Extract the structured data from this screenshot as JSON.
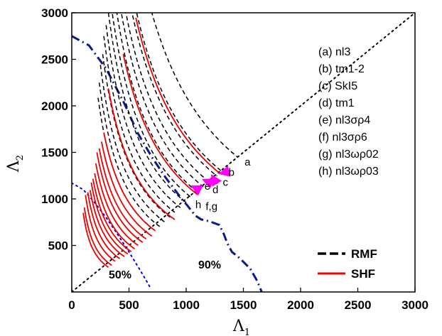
{
  "chart_data": {
    "type": "line",
    "xlabel": "Λ",
    "xlabel_sub": "1",
    "ylabel": "Λ",
    "ylabel_sub": "2",
    "xlim": [
      0,
      3000
    ],
    "ylim": [
      0,
      3000
    ],
    "x_ticks": [
      0,
      500,
      1000,
      1500,
      2000,
      2500,
      3000
    ],
    "y_ticks": [
      500,
      1000,
      1500,
      2000,
      2500,
      3000
    ],
    "grid": false,
    "legend_position": "bottom-right",
    "legend": [
      {
        "label": "RMF",
        "style": "dash",
        "color": "#000000"
      },
      {
        "label": "SHF",
        "style": "solid",
        "color": "#ee0000"
      }
    ],
    "model_list": [
      "(a) nl3",
      "(b) tm1-2",
      "(c) SkI5",
      "(d) tm1",
      "(e) nl3σρ4",
      "(f) nl3σρ6",
      "(g) nl3ωρ02",
      "(h) nl3ωρ03"
    ],
    "annotations": [
      "50%",
      "90%"
    ],
    "point_labels": [
      {
        "text": "a",
        "x": 1510,
        "y": 1360
      },
      {
        "text": "b",
        "x": 1370,
        "y": 1250
      },
      {
        "text": "c",
        "x": 1320,
        "y": 1140
      },
      {
        "text": "d",
        "x": 1230,
        "y": 1060
      },
      {
        "text": "e",
        "x": 1160,
        "y": 1100
      },
      {
        "text": "f,g",
        "x": 1170,
        "y": 880
      },
      {
        "text": "h",
        "x": 1080,
        "y": 900
      }
    ],
    "arrows": [
      {
        "from": [
          1390,
          1300
        ],
        "to": [
          1305,
          1275
        ]
      },
      {
        "from": [
          1270,
          1160
        ],
        "to": [
          1230,
          1240
        ]
      },
      {
        "from": [
          1180,
          1190
        ],
        "to": [
          1160,
          1200
        ]
      },
      {
        "from": [
          1120,
          1095
        ],
        "to": [
          1060,
          1130
        ]
      }
    ],
    "reference_lines": [
      {
        "name": "diagonal",
        "style": "dot",
        "color": "#000000",
        "points": [
          [
            0,
            0
          ],
          [
            3000,
            3000
          ]
        ]
      },
      {
        "name": "90%",
        "style": "dashdot",
        "color": "#0a1a8a",
        "points": [
          [
            0,
            2750
          ],
          [
            150,
            2650
          ],
          [
            300,
            2400
          ],
          [
            450,
            2050
          ],
          [
            580,
            1700
          ],
          [
            700,
            1450
          ],
          [
            820,
            1230
          ],
          [
            900,
            1100
          ],
          [
            960,
            1000
          ],
          [
            1010,
            930
          ],
          [
            1080,
            820
          ],
          [
            1130,
            780
          ],
          [
            1200,
            760
          ],
          [
            1290,
            720
          ],
          [
            1330,
            620
          ],
          [
            1360,
            520
          ],
          [
            1400,
            430
          ],
          [
            1470,
            360
          ],
          [
            1560,
            250
          ],
          [
            1620,
            120
          ],
          [
            1660,
            0
          ]
        ]
      },
      {
        "name": "50%",
        "style": "dot",
        "color": "#0000ee",
        "points": [
          [
            0,
            1170
          ],
          [
            100,
            1100
          ],
          [
            200,
            960
          ],
          [
            300,
            800
          ],
          [
            400,
            620
          ],
          [
            500,
            430
          ],
          [
            600,
            230
          ],
          [
            680,
            60
          ]
        ]
      }
    ],
    "rmf_curves": [
      {
        "name": "a",
        "k": 2100000,
        "x0": 450,
        "x1": 1450
      },
      {
        "name": "b",
        "k": 1700000,
        "x0": 420,
        "x1": 1320
      },
      {
        "name": "c",
        "k": 1580000,
        "x0": 400,
        "x1": 1270
      },
      {
        "name": "d",
        "k": 1420000,
        "x0": 390,
        "x1": 1210
      },
      {
        "name": "",
        "k": 1300000,
        "x0": 370,
        "x1": 1150
      },
      {
        "name": "",
        "k": 1180000,
        "x0": 355,
        "x1": 1100
      },
      {
        "name": "e",
        "k": 1060000,
        "x0": 330,
        "x1": 1050
      },
      {
        "name": "",
        "k": 960000,
        "x0": 320,
        "x1": 1000
      },
      {
        "name": "f",
        "k": 860000,
        "x0": 300,
        "x1": 950
      },
      {
        "name": "g",
        "k": 770000,
        "x0": 280,
        "x1": 900
      },
      {
        "name": "",
        "k": 690000,
        "x0": 270,
        "x1": 860
      },
      {
        "name": "h",
        "k": 610000,
        "x0": 250,
        "x1": 810
      },
      {
        "name": "",
        "k": 540000,
        "x0": 240,
        "x1": 770
      },
      {
        "name": "",
        "k": 480000,
        "x0": 230,
        "x1": 720
      }
    ],
    "shf_curves": [
      {
        "k": 1650000,
        "x0": 560,
        "x1": 1300
      },
      {
        "k": 1150000,
        "x0": 450,
        "x1": 1100
      },
      {
        "k": 700000,
        "x0": 320,
        "x1": 900
      },
      {
        "k": 480000,
        "x0": 280,
        "x1": 730
      },
      {
        "k": 420000,
        "x0": 260,
        "x1": 700
      },
      {
        "k": 370000,
        "x0": 240,
        "x1": 650
      },
      {
        "k": 330000,
        "x0": 220,
        "x1": 620
      },
      {
        "k": 290000,
        "x0": 210,
        "x1": 580
      },
      {
        "k": 255000,
        "x0": 200,
        "x1": 550
      },
      {
        "k": 225000,
        "x0": 185,
        "x1": 520
      },
      {
        "k": 200000,
        "x0": 170,
        "x1": 490
      },
      {
        "k": 175000,
        "x0": 160,
        "x1": 460
      },
      {
        "k": 150000,
        "x0": 140,
        "x1": 420
      },
      {
        "k": 125000,
        "x0": 120,
        "x1": 380
      },
      {
        "k": 100000,
        "x0": 110,
        "x1": 350
      },
      {
        "k": 85000,
        "x0": 100,
        "x1": 320
      }
    ]
  }
}
